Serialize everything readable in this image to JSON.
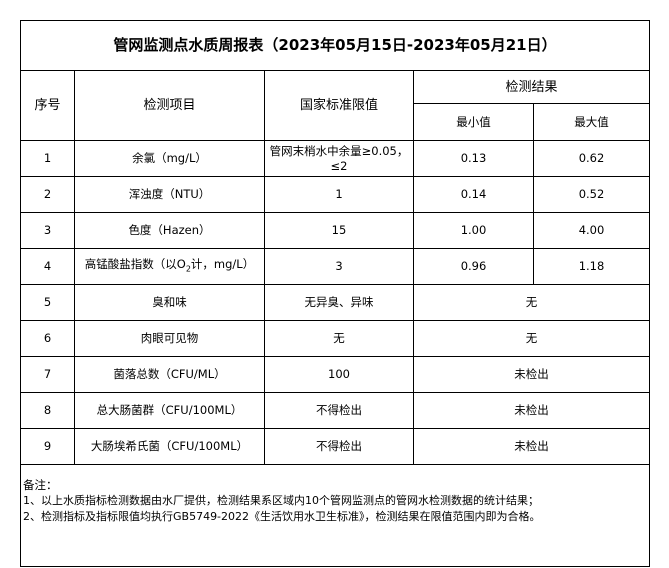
{
  "title": "管网监测点水质周报表（2023年05月15日-2023年05月21日）",
  "headers": {
    "seq": "序号",
    "item": "检测项目",
    "standard": "国家标准限值",
    "result": "检测结果",
    "min": "最小值",
    "max": "最大值"
  },
  "rows": [
    {
      "no": "1",
      "item": "余氯（mg/L）",
      "standard": "管网末梢水中余量≥0.05，≤2",
      "min": "0.13",
      "max": "0.62"
    },
    {
      "no": "2",
      "item": "浑浊度（NTU）",
      "standard": "1",
      "min": "0.14",
      "max": "0.52"
    },
    {
      "no": "3",
      "item": "色度（Hazen）",
      "standard": "15",
      "min": "1.00",
      "max": "4.00"
    },
    {
      "no": "4",
      "item_pre": "高锰酸盐指数（以O",
      "item_sub": "2",
      "item_post": "计，mg/L）",
      "standard": "3",
      "min": "0.96",
      "max": "1.18"
    },
    {
      "no": "5",
      "item": "臭和味",
      "standard": "无异臭、异味",
      "result": "无"
    },
    {
      "no": "6",
      "item": "肉眼可见物",
      "standard": "无",
      "result": "无"
    },
    {
      "no": "7",
      "item": "菌落总数（CFU/ML）",
      "standard": "100",
      "result": "未检出"
    },
    {
      "no": "8",
      "item": "总大肠菌群（CFU/100ML）",
      "standard": "不得检出",
      "result": "未检出"
    },
    {
      "no": "9",
      "item": "大肠埃希氏菌（CFU/100ML）",
      "standard": "不得检出",
      "result": "未检出"
    }
  ],
  "notes": {
    "heading": "备注：",
    "line1": "1、以上水质指标检测数据由水厂提供，检测结果系区域内10个管网监测点的管网水检测数据的统计结果；",
    "line2": "2、检测指标及指标限值均执行GB5749-2022《生活饮用水卫生标准》，检测结果在限值范围内即为合格。"
  }
}
